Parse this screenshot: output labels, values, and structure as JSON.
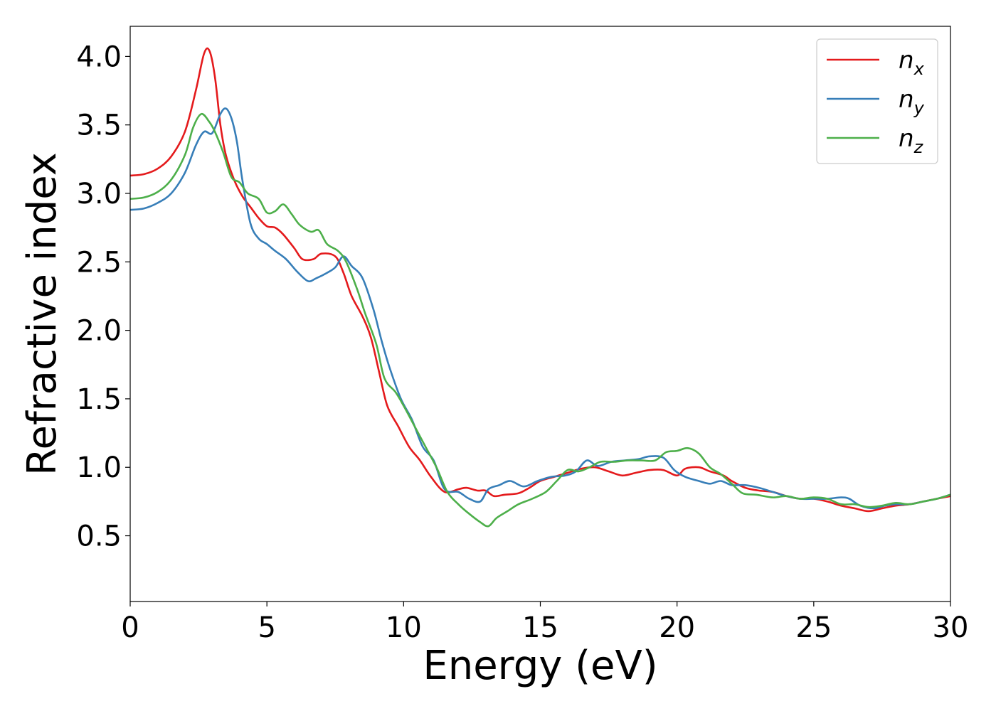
{
  "chart_data": {
    "type": "line",
    "xlabel": "Energy (eV)",
    "ylabel": "Refractive index",
    "xlim": [
      0,
      30
    ],
    "ylim": [
      0.02,
      4.22
    ],
    "grid": false,
    "legend": {
      "placement": "top-right",
      "entries": [
        {
          "base": "n",
          "sub": "x",
          "color": "#e41a1c"
        },
        {
          "base": "n",
          "sub": "y",
          "color": "#377eb8"
        },
        {
          "base": "n",
          "sub": "z",
          "color": "#4daf4a"
        }
      ]
    },
    "x_ticks": [
      0,
      5,
      10,
      15,
      20,
      25,
      30
    ],
    "y_ticks": [
      0.5,
      1.0,
      1.5,
      2.0,
      2.5,
      3.0,
      3.5,
      4.0
    ],
    "x_tick_labels": [
      "0",
      "5",
      "10",
      "15",
      "20",
      "25",
      "30"
    ],
    "y_tick_labels": [
      "0.5",
      "1.0",
      "1.5",
      "2.0",
      "2.5",
      "3.0",
      "3.5",
      "4.0"
    ],
    "series": [
      {
        "key": "nx",
        "color": "#e41a1c",
        "points": [
          [
            0,
            3.13
          ],
          [
            0.5,
            3.14
          ],
          [
            1.0,
            3.18
          ],
          [
            1.5,
            3.27
          ],
          [
            2.0,
            3.45
          ],
          [
            2.4,
            3.75
          ],
          [
            2.7,
            4.02
          ],
          [
            2.9,
            4.04
          ],
          [
            3.1,
            3.85
          ],
          [
            3.3,
            3.5
          ],
          [
            3.5,
            3.28
          ],
          [
            3.8,
            3.1
          ],
          [
            4.1,
            2.98
          ],
          [
            4.4,
            2.9
          ],
          [
            4.7,
            2.82
          ],
          [
            5.0,
            2.76
          ],
          [
            5.3,
            2.75
          ],
          [
            5.6,
            2.7
          ],
          [
            6.0,
            2.6
          ],
          [
            6.3,
            2.52
          ],
          [
            6.7,
            2.52
          ],
          [
            7.0,
            2.56
          ],
          [
            7.5,
            2.54
          ],
          [
            7.8,
            2.42
          ],
          [
            8.1,
            2.25
          ],
          [
            8.5,
            2.1
          ],
          [
            8.8,
            1.95
          ],
          [
            9.1,
            1.7
          ],
          [
            9.4,
            1.45
          ],
          [
            9.8,
            1.3
          ],
          [
            10.2,
            1.15
          ],
          [
            10.6,
            1.05
          ],
          [
            11.0,
            0.93
          ],
          [
            11.5,
            0.82
          ],
          [
            12.0,
            0.84
          ],
          [
            12.3,
            0.85
          ],
          [
            12.7,
            0.83
          ],
          [
            13.0,
            0.83
          ],
          [
            13.3,
            0.79
          ],
          [
            13.7,
            0.8
          ],
          [
            14.2,
            0.81
          ],
          [
            14.6,
            0.85
          ],
          [
            15.0,
            0.9
          ],
          [
            15.5,
            0.93
          ],
          [
            16.0,
            0.96
          ],
          [
            16.5,
            0.99
          ],
          [
            17.0,
            1.0
          ],
          [
            17.5,
            0.97
          ],
          [
            18.0,
            0.94
          ],
          [
            18.5,
            0.96
          ],
          [
            19.0,
            0.98
          ],
          [
            19.5,
            0.98
          ],
          [
            20.0,
            0.94
          ],
          [
            20.3,
            0.99
          ],
          [
            20.8,
            1.0
          ],
          [
            21.2,
            0.97
          ],
          [
            21.7,
            0.94
          ],
          [
            22.0,
            0.9
          ],
          [
            22.5,
            0.85
          ],
          [
            23.0,
            0.83
          ],
          [
            23.5,
            0.82
          ],
          [
            24.0,
            0.79
          ],
          [
            24.5,
            0.77
          ],
          [
            25.0,
            0.77
          ],
          [
            25.5,
            0.75
          ],
          [
            26.0,
            0.72
          ],
          [
            26.5,
            0.7
          ],
          [
            27.0,
            0.68
          ],
          [
            27.5,
            0.7
          ],
          [
            28.0,
            0.72
          ],
          [
            28.5,
            0.73
          ],
          [
            29.0,
            0.75
          ],
          [
            29.5,
            0.77
          ],
          [
            30.0,
            0.79
          ]
        ]
      },
      {
        "key": "ny",
        "color": "#377eb8",
        "points": [
          [
            0,
            2.88
          ],
          [
            0.5,
            2.89
          ],
          [
            1.0,
            2.93
          ],
          [
            1.5,
            3.0
          ],
          [
            2.0,
            3.15
          ],
          [
            2.4,
            3.35
          ],
          [
            2.7,
            3.45
          ],
          [
            3.0,
            3.44
          ],
          [
            3.3,
            3.58
          ],
          [
            3.5,
            3.62
          ],
          [
            3.7,
            3.55
          ],
          [
            3.9,
            3.38
          ],
          [
            4.1,
            3.1
          ],
          [
            4.4,
            2.78
          ],
          [
            4.7,
            2.67
          ],
          [
            5.0,
            2.63
          ],
          [
            5.3,
            2.58
          ],
          [
            5.7,
            2.52
          ],
          [
            6.1,
            2.43
          ],
          [
            6.5,
            2.36
          ],
          [
            6.8,
            2.38
          ],
          [
            7.2,
            2.42
          ],
          [
            7.5,
            2.46
          ],
          [
            7.8,
            2.54
          ],
          [
            8.1,
            2.47
          ],
          [
            8.5,
            2.38
          ],
          [
            8.9,
            2.15
          ],
          [
            9.2,
            1.92
          ],
          [
            9.5,
            1.72
          ],
          [
            9.9,
            1.5
          ],
          [
            10.3,
            1.35
          ],
          [
            10.7,
            1.15
          ],
          [
            11.1,
            1.05
          ],
          [
            11.5,
            0.84
          ],
          [
            12.0,
            0.82
          ],
          [
            12.4,
            0.77
          ],
          [
            12.8,
            0.75
          ],
          [
            13.1,
            0.84
          ],
          [
            13.5,
            0.87
          ],
          [
            13.9,
            0.9
          ],
          [
            14.4,
            0.86
          ],
          [
            14.9,
            0.9
          ],
          [
            15.4,
            0.93
          ],
          [
            15.9,
            0.94
          ],
          [
            16.3,
            0.97
          ],
          [
            16.7,
            1.05
          ],
          [
            17.1,
            1.01
          ],
          [
            17.6,
            1.04
          ],
          [
            18.1,
            1.05
          ],
          [
            18.6,
            1.06
          ],
          [
            19.0,
            1.08
          ],
          [
            19.5,
            1.07
          ],
          [
            19.9,
            0.98
          ],
          [
            20.3,
            0.93
          ],
          [
            20.8,
            0.9
          ],
          [
            21.2,
            0.88
          ],
          [
            21.6,
            0.9
          ],
          [
            22.0,
            0.87
          ],
          [
            22.5,
            0.87
          ],
          [
            23.0,
            0.85
          ],
          [
            23.5,
            0.82
          ],
          [
            24.0,
            0.79
          ],
          [
            24.5,
            0.77
          ],
          [
            25.0,
            0.77
          ],
          [
            25.5,
            0.77
          ],
          [
            26.0,
            0.78
          ],
          [
            26.3,
            0.77
          ],
          [
            26.7,
            0.72
          ],
          [
            27.2,
            0.7
          ],
          [
            27.6,
            0.72
          ],
          [
            28.0,
            0.73
          ],
          [
            28.5,
            0.73
          ],
          [
            29.0,
            0.75
          ],
          [
            29.5,
            0.77
          ],
          [
            30.0,
            0.8
          ]
        ]
      },
      {
        "key": "nz",
        "color": "#4daf4a",
        "points": [
          [
            0,
            2.96
          ],
          [
            0.5,
            2.97
          ],
          [
            1.0,
            3.01
          ],
          [
            1.5,
            3.1
          ],
          [
            2.0,
            3.28
          ],
          [
            2.3,
            3.48
          ],
          [
            2.6,
            3.58
          ],
          [
            2.9,
            3.52
          ],
          [
            3.1,
            3.45
          ],
          [
            3.4,
            3.3
          ],
          [
            3.7,
            3.12
          ],
          [
            4.0,
            3.08
          ],
          [
            4.3,
            3.0
          ],
          [
            4.7,
            2.96
          ],
          [
            5.0,
            2.86
          ],
          [
            5.3,
            2.87
          ],
          [
            5.6,
            2.92
          ],
          [
            5.9,
            2.85
          ],
          [
            6.2,
            2.77
          ],
          [
            6.6,
            2.72
          ],
          [
            6.9,
            2.73
          ],
          [
            7.2,
            2.63
          ],
          [
            7.6,
            2.58
          ],
          [
            7.9,
            2.5
          ],
          [
            8.3,
            2.3
          ],
          [
            8.6,
            2.12
          ],
          [
            9.0,
            1.9
          ],
          [
            9.3,
            1.65
          ],
          [
            9.7,
            1.55
          ],
          [
            10.0,
            1.45
          ],
          [
            10.4,
            1.3
          ],
          [
            10.8,
            1.15
          ],
          [
            11.2,
            1.0
          ],
          [
            11.6,
            0.82
          ],
          [
            12.0,
            0.73
          ],
          [
            12.4,
            0.66
          ],
          [
            12.8,
            0.6
          ],
          [
            13.1,
            0.57
          ],
          [
            13.4,
            0.63
          ],
          [
            13.8,
            0.68
          ],
          [
            14.2,
            0.73
          ],
          [
            14.7,
            0.77
          ],
          [
            15.2,
            0.82
          ],
          [
            15.6,
            0.9
          ],
          [
            16.0,
            0.98
          ],
          [
            16.4,
            0.97
          ],
          [
            16.8,
            1.0
          ],
          [
            17.2,
            1.04
          ],
          [
            17.7,
            1.04
          ],
          [
            18.2,
            1.05
          ],
          [
            18.7,
            1.05
          ],
          [
            19.2,
            1.05
          ],
          [
            19.6,
            1.11
          ],
          [
            20.0,
            1.12
          ],
          [
            20.4,
            1.14
          ],
          [
            20.8,
            1.1
          ],
          [
            21.2,
            1.0
          ],
          [
            21.6,
            0.95
          ],
          [
            22.0,
            0.88
          ],
          [
            22.4,
            0.81
          ],
          [
            22.9,
            0.8
          ],
          [
            23.5,
            0.78
          ],
          [
            24.0,
            0.79
          ],
          [
            24.5,
            0.77
          ],
          [
            25.0,
            0.78
          ],
          [
            25.5,
            0.77
          ],
          [
            26.0,
            0.73
          ],
          [
            26.5,
            0.73
          ],
          [
            27.0,
            0.71
          ],
          [
            27.5,
            0.72
          ],
          [
            28.0,
            0.74
          ],
          [
            28.5,
            0.73
          ],
          [
            29.0,
            0.75
          ],
          [
            29.5,
            0.77
          ],
          [
            30.0,
            0.8
          ]
        ]
      }
    ]
  }
}
